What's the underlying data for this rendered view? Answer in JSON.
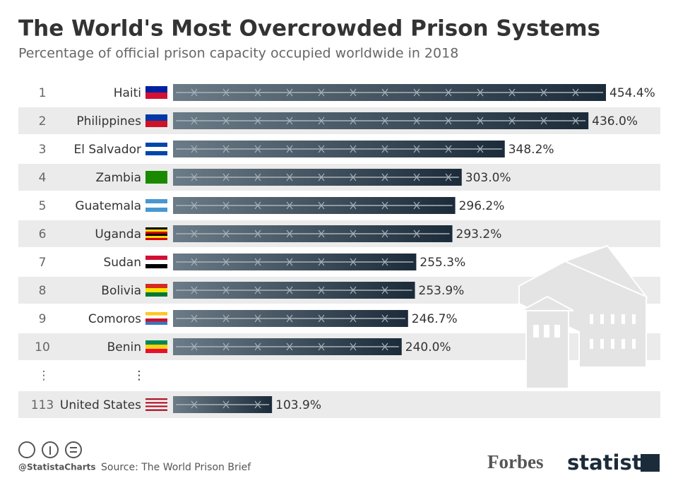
{
  "chart_data": {
    "type": "bar",
    "title": "The World's Most Overcrowded Prison Systems",
    "subtitle": "Percentage of official prison capacity occupied worldwide in 2018",
    "ranks": [
      "1",
      "2",
      "3",
      "4",
      "5",
      "6",
      "7",
      "8",
      "9",
      "10",
      "113"
    ],
    "categories": [
      "Haiti",
      "Philippines",
      "El Salvador",
      "Zambia",
      "Guatemala",
      "Uganda",
      "Sudan",
      "Bolivia",
      "Comoros",
      "Benin",
      "United States"
    ],
    "values": [
      454.4,
      436.0,
      348.2,
      303.0,
      296.2,
      293.2,
      255.3,
      253.9,
      246.7,
      240.0,
      103.9
    ],
    "value_labels": [
      "454.4%",
      "436.0%",
      "348.2%",
      "303.0%",
      "296.2%",
      "293.2%",
      "255.3%",
      "253.9%",
      "246.7%",
      "240.0%",
      "103.9%"
    ],
    "ellipsis": "⋮",
    "color": "#1c2b39"
  },
  "footer": {
    "handle": "@StatistaCharts",
    "source": "Source: The World Prison Brief",
    "logos": [
      "Forbes",
      "statista"
    ]
  }
}
